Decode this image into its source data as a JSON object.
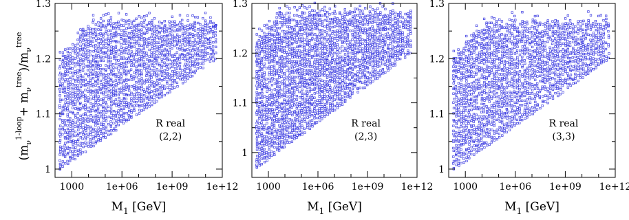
{
  "figure": {
    "ylabel": "(m_ν^{1-loop} + m_ν^{tree})/m_ν^{tree}",
    "ylabel_parts": {
      "open": "(m",
      "nu1": "ν",
      "sup1": "1-loop",
      "plus": "+ m",
      "nu2": "ν",
      "sup2": "tree",
      "close": ")/m",
      "nu3": "ν",
      "sup3": "tree"
    },
    "marker_color": "#3a3ae0"
  },
  "chart_data": [
    {
      "type": "scatter",
      "xlabel": "M1 [GeV]",
      "xlabel_parts": {
        "main": "M",
        "sub": "1",
        "unit": " [GeV]"
      },
      "x_scale": "log",
      "xlim": [
        100,
        1000000000000.0
      ],
      "ylim": [
        0.985,
        1.3
      ],
      "x_ticks": [
        {
          "value": 1000,
          "label": "1000"
        },
        {
          "value": 1000000.0,
          "label": "1e+06"
        },
        {
          "value": 1000000000.0,
          "label": "1e+09"
        },
        {
          "value": 1000000000000.0,
          "label": "1e+12"
        }
      ],
      "y_ticks": [
        {
          "value": 1.0,
          "label": "1"
        },
        {
          "value": 1.1,
          "label": "1.1"
        },
        {
          "value": 1.2,
          "label": "1.2"
        },
        {
          "value": 1.3,
          "label": "1.3"
        }
      ],
      "annotation": [
        "R real",
        "(2,2)"
      ],
      "envelope": {
        "x_start": 200,
        "x_end": 400000000000.0,
        "y_min_start": 1.0,
        "y_min_end": 1.2,
        "y_max_start": 1.205,
        "y_max_plateau": 1.27,
        "x_plateau": 20000
      },
      "points": [
        {
          "x": 200,
          "y": 1.0
        },
        {
          "x": 300,
          "y": 1.1
        },
        {
          "x": 500,
          "y": 1.2
        },
        {
          "x": 1000,
          "y": 1.05
        },
        {
          "x": 5000,
          "y": 1.25
        },
        {
          "x": 100000.0,
          "y": 1.15
        },
        {
          "x": 1000000.0,
          "y": 1.27
        },
        {
          "x": 100000000.0,
          "y": 1.2
        },
        {
          "x": 10000000000.0,
          "y": 1.23
        },
        {
          "x": 400000000000.0,
          "y": 1.26
        }
      ]
    },
    {
      "type": "scatter",
      "xlabel": "M1 [GeV]",
      "xlabel_parts": {
        "main": "M",
        "sub": "1",
        "unit": " [GeV]"
      },
      "x_scale": "log",
      "xlim": [
        100,
        1000000000000.0
      ],
      "ylim": [
        0.95,
        1.3
      ],
      "x_ticks": [
        {
          "value": 1000,
          "label": "1000"
        },
        {
          "value": 1000000.0,
          "label": "1e+06"
        },
        {
          "value": 1000000000.0,
          "label": "1e+09"
        },
        {
          "value": 1000000000000.0,
          "label": "1e+12"
        }
      ],
      "y_ticks": [
        {
          "value": 1.0,
          "label": "1"
        },
        {
          "value": 1.1,
          "label": "1.1"
        },
        {
          "value": 1.2,
          "label": "1.2"
        },
        {
          "value": 1.3,
          "label": "1.3"
        }
      ],
      "annotation": [
        "R real",
        "(2,3)"
      ],
      "envelope": {
        "x_start": 200,
        "x_end": 400000000000.0,
        "y_min_start": 0.97,
        "y_min_end": 1.2,
        "y_max_start": 1.23,
        "y_max_plateau": 1.285,
        "x_plateau": 5000
      },
      "points": [
        {
          "x": 200,
          "y": 0.97
        },
        {
          "x": 300,
          "y": 1.1
        },
        {
          "x": 500,
          "y": 1.22
        },
        {
          "x": 1000,
          "y": 1.05
        },
        {
          "x": 5000,
          "y": 1.28
        },
        {
          "x": 100000.0,
          "y": 1.15
        },
        {
          "x": 1000000.0,
          "y": 1.28
        },
        {
          "x": 100000000.0,
          "y": 1.2
        },
        {
          "x": 10000000000.0,
          "y": 1.25
        },
        {
          "x": 400000000000.0,
          "y": 1.27
        }
      ]
    },
    {
      "type": "scatter",
      "xlabel": "M1 [GeV]",
      "xlabel_parts": {
        "main": "M",
        "sub": "1",
        "unit": " [GeV]"
      },
      "x_scale": "log",
      "xlim": [
        100,
        1000000000000.0
      ],
      "ylim": [
        0.985,
        1.3
      ],
      "x_ticks": [
        {
          "value": 1000,
          "label": "1000"
        },
        {
          "value": 1000000.0,
          "label": "1e+06"
        },
        {
          "value": 1000000000.0,
          "label": "1e+09"
        },
        {
          "value": 1000000000000.0,
          "label": "1e+12"
        }
      ],
      "y_ticks": [
        {
          "value": 1.0,
          "label": "1"
        },
        {
          "value": 1.1,
          "label": "1.1"
        },
        {
          "value": 1.2,
          "label": "1.2"
        },
        {
          "value": 1.3,
          "label": "1.3"
        }
      ],
      "annotation": [
        "R real",
        "(3,3)"
      ],
      "envelope": {
        "x_start": 200,
        "x_end": 400000000000.0,
        "y_min_start": 1.0,
        "y_min_end": 1.2,
        "y_max_start": 1.21,
        "y_max_plateau": 1.27,
        "x_plateau": 20000
      },
      "points": [
        {
          "x": 200,
          "y": 1.0
        },
        {
          "x": 300,
          "y": 1.1
        },
        {
          "x": 500,
          "y": 1.2
        },
        {
          "x": 1000,
          "y": 1.05
        },
        {
          "x": 5000,
          "y": 1.25
        },
        {
          "x": 100000.0,
          "y": 1.15
        },
        {
          "x": 1000000.0,
          "y": 1.27
        },
        {
          "x": 100000000.0,
          "y": 1.2
        },
        {
          "x": 10000000000.0,
          "y": 1.23
        },
        {
          "x": 400000000000.0,
          "y": 1.26
        }
      ]
    }
  ]
}
